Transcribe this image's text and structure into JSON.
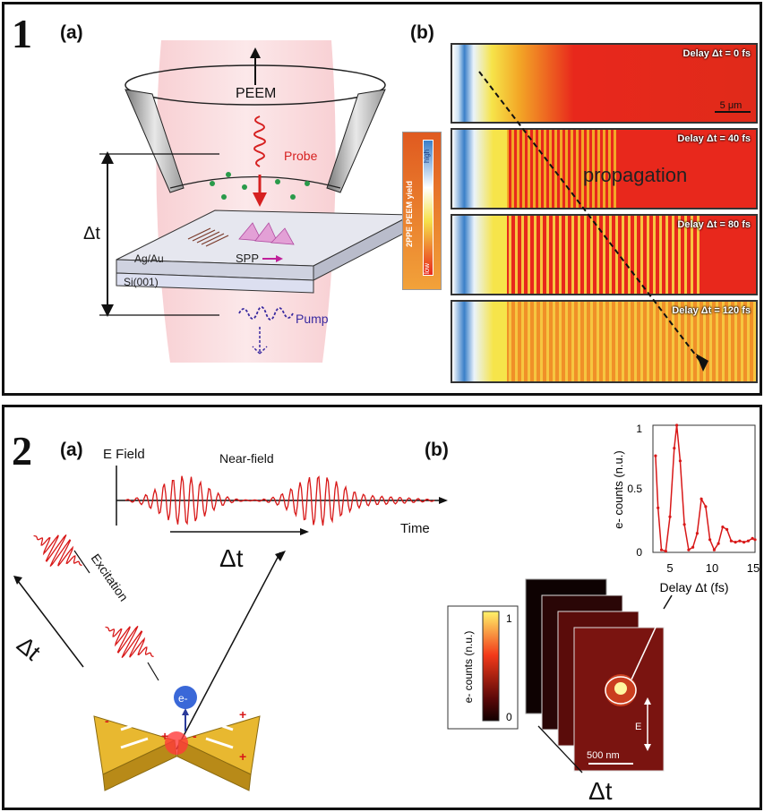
{
  "panel1": {
    "number": "1",
    "label_a": "(a)",
    "label_b": "(b)",
    "schematic": {
      "peem": "PEEM",
      "probe": "Probe",
      "pump": "Pump",
      "delta_t": "Δt",
      "spp": "SPP",
      "metal": "Ag/Au",
      "substrate": "Si(001)"
    },
    "colorbar": {
      "title": "2PPE PEEM yield",
      "high": "high",
      "low": "low"
    },
    "frames": [
      {
        "label": "Delay Δt = 0 fs"
      },
      {
        "label": "Delay Δt = 40 fs"
      },
      {
        "label": "Delay Δt = 80 fs"
      },
      {
        "label": "Delay Δt = 120 fs"
      }
    ],
    "scalebar": "5 μm",
    "propagation": "propagation",
    "colors": {
      "hot": "#e8281c",
      "warm": "#f4a21a",
      "cool": "#3a7fc8"
    }
  },
  "panel2": {
    "number": "2",
    "label_a": "(a)",
    "label_b": "(b)",
    "efield_label": "E Field",
    "nearfield_label": "Near-field",
    "time_label": "Time",
    "delta_t": "Δt",
    "excitation": "Excitation",
    "electron": "e-",
    "colorbar": {
      "title": "e- counts (n.u.)",
      "max": "1",
      "min": "0"
    },
    "scalebar": "500 nm",
    "e_label": "E",
    "stack_delta": "Δt",
    "plot": {
      "ylabel": "e- counts (n.u.)",
      "xlabel": "Delay Δt (fs)",
      "xticks": [
        "5",
        "10",
        "15"
      ],
      "yticks": [
        "0",
        "0.5",
        "1"
      ]
    }
  },
  "chart_data": {
    "type": "line",
    "title": "",
    "xlabel": "Delay Δt (fs)",
    "ylabel": "e- counts (n.u.)",
    "xlim": [
      3,
      15
    ],
    "ylim": [
      0,
      1
    ],
    "series": [
      {
        "x": [
          3.3,
          3.6,
          4.0,
          4.5,
          5.0,
          5.5,
          5.8,
          6.2,
          6.7,
          7.2,
          7.7,
          8.2,
          8.7,
          9.2,
          9.7,
          10.2,
          10.7,
          11.2,
          11.7,
          12.2,
          12.7,
          13.2,
          13.7,
          14.2,
          14.7,
          15.0
        ],
        "y": [
          0.76,
          0.35,
          0.02,
          0.01,
          0.28,
          0.82,
          1.0,
          0.72,
          0.22,
          0.02,
          0.04,
          0.15,
          0.42,
          0.36,
          0.1,
          0.02,
          0.07,
          0.2,
          0.18,
          0.09,
          0.08,
          0.09,
          0.08,
          0.09,
          0.11,
          0.1
        ]
      }
    ]
  }
}
